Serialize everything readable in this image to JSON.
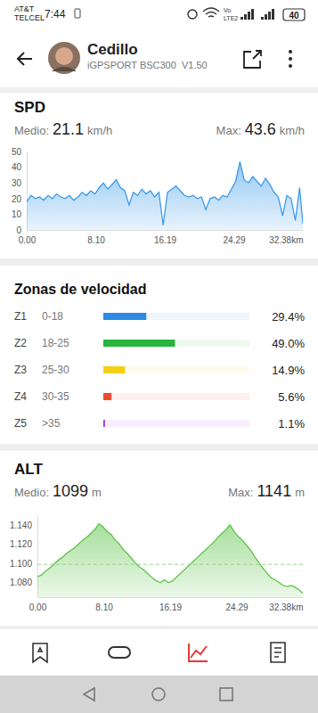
{
  "status_bar": {
    "carrier": [
      "AT&T",
      "TELCEL"
    ],
    "time": "7:44",
    "network": [
      "Vo",
      "LTE2"
    ],
    "battery": "40"
  },
  "header": {
    "name": "Cedillo",
    "device": "iGPSPORT BSC300  V1.50"
  },
  "chart_data": [
    {
      "type": "area",
      "title": "SPD",
      "color": "#3d9be9",
      "annotations": [
        {
          "label": "Medio:",
          "value": 21.1,
          "unit": "km/h"
        },
        {
          "label": "Max:",
          "value": 43.6,
          "unit": "km/h"
        }
      ],
      "x": [
        0,
        0.5,
        1,
        1.5,
        2,
        2.5,
        3,
        3.5,
        4,
        4.5,
        5,
        5.5,
        6,
        6.5,
        7,
        7.5,
        8,
        8.5,
        9,
        9.5,
        10,
        10.5,
        11,
        11.5,
        12,
        12.5,
        13,
        13.5,
        14,
        14.5,
        15,
        15.5,
        16,
        16.5,
        17,
        17.5,
        18,
        18.5,
        19,
        19.5,
        20,
        20.5,
        21,
        21.5,
        22,
        22.5,
        23,
        23.5,
        24,
        24.5,
        25,
        25.5,
        26,
        26.5,
        27,
        27.5,
        28,
        28.5,
        29,
        29.5,
        30,
        30.5,
        31,
        31.5,
        32,
        32.38
      ],
      "values": [
        18,
        22,
        20,
        21,
        19,
        22,
        20,
        23,
        21,
        20,
        22,
        19,
        21,
        24,
        22,
        25,
        23,
        27,
        30,
        26,
        29,
        32,
        27,
        25,
        16,
        24,
        22,
        26,
        23,
        25,
        21,
        24,
        3,
        24,
        26,
        28,
        25,
        22,
        21,
        22,
        20,
        21,
        13,
        20,
        21,
        19,
        22,
        21,
        26,
        31,
        43.6,
        32,
        30,
        34,
        31,
        28,
        33,
        29,
        24,
        21,
        9,
        22,
        20,
        6,
        27,
        4
      ],
      "xlim": [
        0,
        32.38
      ],
      "xticks": [
        {
          "value": 0,
          "label": "0.00"
        },
        {
          "value": 8.1,
          "label": "8.10"
        },
        16.19,
        24.29,
        {
          "value": 32.38,
          "label": "32.38km"
        }
      ],
      "ylim": [
        0,
        50
      ],
      "yticks": [
        0,
        10,
        20,
        30,
        40,
        50
      ]
    },
    {
      "type": "bar",
      "title": "Zonas de velocidad",
      "orientation": "horizontal",
      "categories": [
        "Z1",
        "Z2",
        "Z3",
        "Z4",
        "Z5"
      ],
      "ranges": [
        "0-18",
        "18-25",
        "25-30",
        "30-35",
        ">35"
      ],
      "values": [
        29.4,
        49.0,
        14.9,
        5.6,
        1.1
      ],
      "value_labels": [
        "29.4%",
        "49.0%",
        "14.9%",
        "5.6%",
        "1.1%"
      ],
      "colors": [
        "#2a8ae6",
        "#27b53a",
        "#f5cf14",
        "#ef4a2d",
        "#9b2fe0"
      ],
      "xlim": [
        0,
        100
      ],
      "data_labels": true,
      "tick_labels": "y"
    },
    {
      "type": "area",
      "title": "ALT",
      "color": "#5ec44a",
      "annotations": [
        {
          "label": "Medio:",
          "value": 1099,
          "unit": "m",
          "line_style": "dashed"
        },
        {
          "label": "Max:",
          "value": 1141,
          "unit": "m"
        }
      ],
      "x": [
        0,
        0.5,
        1,
        1.5,
        2,
        2.5,
        3,
        3.5,
        4,
        4.5,
        5,
        5.5,
        6,
        6.5,
        7,
        7.5,
        8,
        8.5,
        9,
        9.5,
        10,
        10.5,
        11,
        11.5,
        12,
        12.5,
        13,
        13.5,
        14,
        14.5,
        15,
        15.5,
        16,
        16.5,
        17,
        17.5,
        18,
        18.5,
        19,
        19.5,
        20,
        20.5,
        21,
        21.5,
        22,
        22.5,
        23,
        23.5,
        24,
        24.5,
        25,
        25.5,
        26,
        26.5,
        27,
        27.5,
        28,
        28.5,
        29,
        29.5,
        30,
        30.5,
        31,
        31.5,
        32,
        32.38
      ],
      "values": [
        1086,
        1088,
        1092,
        1095,
        1099,
        1103,
        1106,
        1110,
        1113,
        1116,
        1120,
        1124,
        1127,
        1131,
        1135,
        1141,
        1138,
        1133,
        1130,
        1124,
        1120,
        1114,
        1110,
        1105,
        1100,
        1096,
        1093,
        1089,
        1085,
        1082,
        1080,
        1083,
        1080,
        1082,
        1086,
        1090,
        1094,
        1098,
        1102,
        1106,
        1110,
        1114,
        1118,
        1122,
        1127,
        1131,
        1135,
        1140,
        1133,
        1128,
        1124,
        1119,
        1114,
        1107,
        1101,
        1095,
        1090,
        1085,
        1083,
        1080,
        1077,
        1076,
        1077,
        1075,
        1072,
        1069
      ],
      "xlim": [
        0,
        32.38
      ],
      "xticks": [
        {
          "value": 0,
          "label": "0.00"
        },
        {
          "value": 8.1,
          "label": "8.10"
        },
        16.19,
        24.29,
        {
          "value": 32.38,
          "label": "32.38km"
        }
      ],
      "ylim": [
        1065,
        1150
      ],
      "yticks": [
        {
          "value": 1080,
          "label": "1.080"
        },
        {
          "value": 1100,
          "label": "1.100"
        },
        {
          "value": 1120,
          "label": "1.120"
        },
        {
          "value": 1140,
          "label": "1.140"
        }
      ]
    }
  ]
}
